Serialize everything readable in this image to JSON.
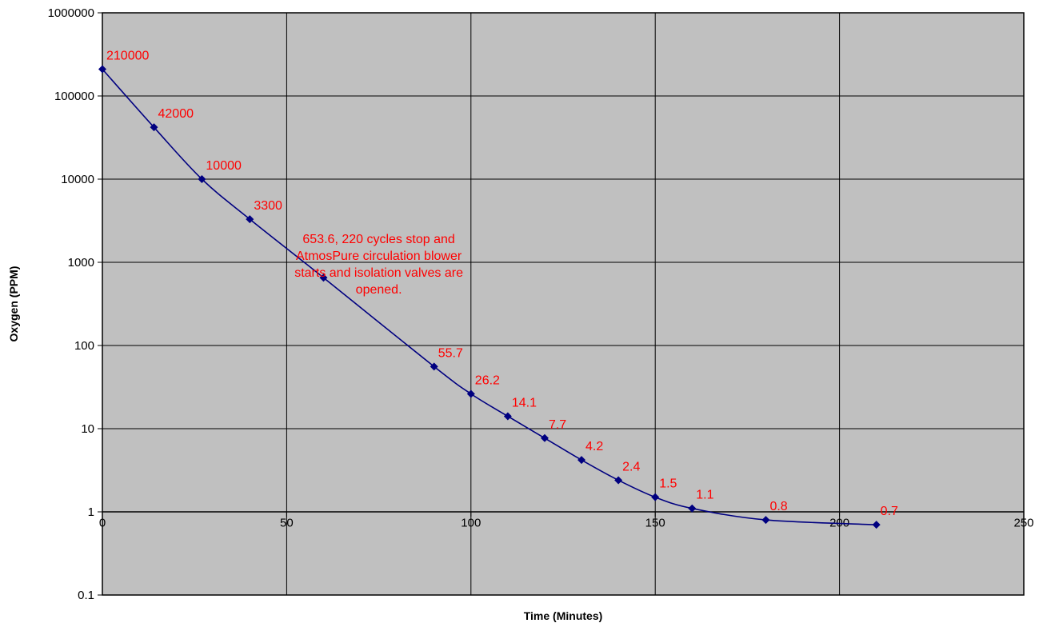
{
  "chart_data": {
    "type": "line",
    "title": "",
    "xlabel": "Time (Minutes)",
    "ylabel": "Oxygen (PPM)",
    "xlim": [
      0,
      250
    ],
    "x_ticks": [
      0,
      50,
      100,
      150,
      200,
      250
    ],
    "x_tick_labels": [
      "0",
      "50",
      "100",
      "150",
      "200",
      "250"
    ],
    "y_scale": "log",
    "ylim": [
      0.1,
      1000000
    ],
    "y_ticks": [
      0.1,
      1,
      10,
      100,
      1000,
      10000,
      100000,
      1000000
    ],
    "y_tick_labels": [
      "0.1",
      "1",
      "10",
      "100",
      "1000",
      "10000",
      "100000",
      "1000000"
    ],
    "grid": true,
    "legend": "none",
    "series": [
      {
        "x": [
          0,
          14,
          27,
          40,
          60,
          90,
          100,
          110,
          120,
          130,
          140,
          150,
          160,
          180,
          210
        ],
        "y": [
          210000,
          42000,
          10000,
          3300,
          653.6,
          55.7,
          26.2,
          14.1,
          7.7,
          4.2,
          2.4,
          1.5,
          1.1,
          0.8,
          0.7
        ],
        "data_labels": [
          "210000",
          "42000",
          "10000",
          "3300",
          "",
          "55.7",
          "26.2",
          "14.1",
          "7.7",
          "4.2",
          "2.4",
          "1.5",
          "1.1",
          "0.8",
          "0.7"
        ]
      }
    ],
    "annotations": [
      {
        "lines": [
          "653.6, 220 cycles stop and",
          "AtmosPure circulation blower",
          "starts and isolation valves are",
          "opened."
        ],
        "x": 75,
        "y": 1700
      }
    ]
  },
  "colors": {
    "plot_background": "#C0C0C0",
    "gridline": "#000000",
    "series_line": "#000080",
    "marker": "#000080",
    "data_label": "#FF0000",
    "annotation": "#FF0000"
  }
}
